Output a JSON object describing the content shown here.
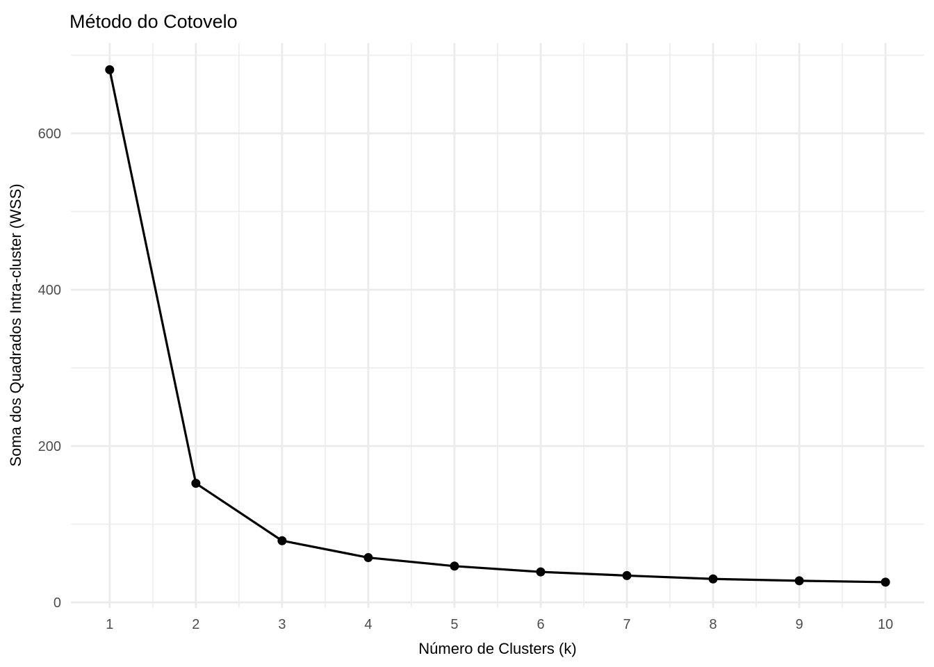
{
  "chart_data": {
    "type": "line",
    "title": "Método do Cotovelo",
    "xlabel": "Número de Clusters (k)",
    "ylabel": "Soma dos Quadrados Intra-cluster (WSS)",
    "x": [
      1,
      2,
      3,
      4,
      5,
      6,
      7,
      8,
      9,
      10
    ],
    "values": [
      681.4,
      152.3,
      78.9,
      57.3,
      46.4,
      39.0,
      34.3,
      30.0,
      27.7,
      25.9
    ],
    "series_name": "WSS",
    "xlim": [
      0.55,
      10.45
    ],
    "ylim": [
      -7.1,
      715.5
    ],
    "x_major_ticks": [
      1,
      2,
      3,
      4,
      5,
      6,
      7,
      8,
      9,
      10
    ],
    "x_tick_labels": [
      "1",
      "2",
      "3",
      "4",
      "5",
      "6",
      "7",
      "8",
      "9",
      "10"
    ],
    "x_minor_gridlines": [
      1.5,
      2.5,
      3.5,
      4.5,
      5.5,
      6.5,
      7.5,
      8.5,
      9.5
    ],
    "y_major_ticks": [
      0,
      200,
      400,
      600
    ],
    "y_tick_labels": [
      "0",
      "200",
      "400",
      "600"
    ],
    "y_minor_gridlines": [
      100,
      300,
      500,
      700
    ],
    "grid": true,
    "legend": "none",
    "colors": {
      "line": "#000000",
      "point": "#000000",
      "grid_major": "#EBEBEB",
      "grid_minor": "#EDEDED",
      "tick_label": "#4D4D4D",
      "title": "#000000",
      "background": "#FFFFFF"
    }
  }
}
